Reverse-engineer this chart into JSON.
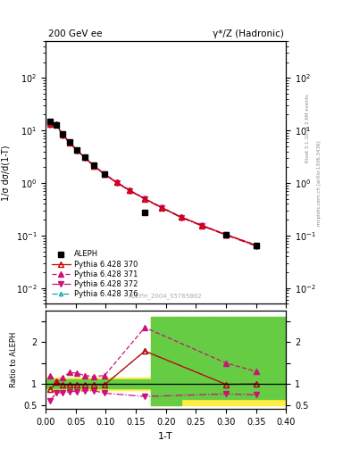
{
  "title_left": "200 GeV ee",
  "title_right": "γ*/Z (Hadronic)",
  "ylabel_main": "1/σ dσ/d(1-T)",
  "ylabel_ratio": "Ratio to ALEPH",
  "xlabel": "1-T",
  "right_label_top": "Rivet 3.1.10, ≥ 2.6M events",
  "right_label_bottom": "mcplots.cern.ch [arXiv:1306.3436]",
  "watermark": "ALEPH_2004_S5765862",
  "aleph_x": [
    0.008,
    0.018,
    0.028,
    0.04,
    0.052,
    0.065,
    0.08,
    0.098,
    0.118,
    0.14,
    0.165,
    0.193,
    0.225,
    0.26,
    0.3,
    0.35
  ],
  "aleph_y": [
    15.0,
    12.5,
    8.5,
    6.0,
    4.3,
    3.1,
    2.15,
    1.5,
    null,
    null,
    0.28,
    null,
    null,
    null,
    0.105,
    0.065
  ],
  "py370_x": [
    0.008,
    0.018,
    0.028,
    0.04,
    0.052,
    0.065,
    0.08,
    0.098,
    0.118,
    0.14,
    0.165,
    0.193,
    0.225,
    0.26,
    0.3,
    0.35
  ],
  "py370_y": [
    13.0,
    13.0,
    8.3,
    5.85,
    4.2,
    3.05,
    2.12,
    1.47,
    1.03,
    0.72,
    0.5,
    0.34,
    0.225,
    0.155,
    0.104,
    0.065
  ],
  "py371_x": [
    0.008,
    0.018,
    0.028,
    0.04,
    0.052,
    0.065,
    0.08,
    0.098,
    0.118,
    0.14,
    0.165,
    0.193,
    0.225,
    0.26,
    0.3,
    0.35
  ],
  "py371_y": [
    13.5,
    13.2,
    8.5,
    5.95,
    4.25,
    3.08,
    2.14,
    1.49,
    1.04,
    0.73,
    0.505,
    0.345,
    0.228,
    0.157,
    0.105,
    0.066
  ],
  "py372_x": [
    0.008,
    0.018,
    0.028,
    0.04,
    0.052,
    0.065,
    0.08,
    0.098,
    0.118,
    0.14,
    0.165,
    0.193,
    0.225,
    0.26,
    0.3,
    0.35
  ],
  "py372_y": [
    12.5,
    12.8,
    8.1,
    5.75,
    4.15,
    3.0,
    2.09,
    1.45,
    1.01,
    0.71,
    0.49,
    0.335,
    0.221,
    0.152,
    0.102,
    0.063
  ],
  "py376_x": [
    0.008,
    0.018,
    0.028,
    0.04,
    0.052,
    0.065,
    0.08,
    0.098,
    0.118,
    0.14,
    0.165,
    0.193,
    0.225,
    0.26,
    0.3,
    0.35
  ],
  "py376_y": [
    13.0,
    13.0,
    8.3,
    5.85,
    4.2,
    3.05,
    2.12,
    1.47,
    1.03,
    0.72,
    0.5,
    0.34,
    0.225,
    0.155,
    0.104,
    0.065
  ],
  "ratio_x": [
    0.008,
    0.018,
    0.028,
    0.04,
    0.052,
    0.065,
    0.08,
    0.098,
    0.118,
    0.14,
    0.165,
    0.193,
    0.225,
    0.26,
    0.3,
    0.35
  ],
  "ratio370_y": [
    0.87,
    1.04,
    0.98,
    0.975,
    0.977,
    0.984,
    0.986,
    0.98,
    null,
    null,
    1.786,
    null,
    null,
    null,
    0.99,
    1.0
  ],
  "ratio371_y": [
    1.2,
    1.06,
    1.16,
    1.27,
    1.26,
    1.2,
    1.18,
    1.2,
    null,
    null,
    2.35,
    null,
    null,
    null,
    1.5,
    1.3
  ],
  "ratio372_y": [
    0.6,
    0.8,
    0.78,
    0.82,
    0.82,
    0.84,
    0.84,
    0.78,
    null,
    null,
    0.7,
    null,
    null,
    null,
    0.76,
    0.74
  ],
  "ratio376_y": [
    0.87,
    1.04,
    0.98,
    0.975,
    0.977,
    0.984,
    0.986,
    0.98,
    null,
    null,
    1.786,
    null,
    null,
    null,
    0.99,
    1.0
  ],
  "band_edges": [
    0.0,
    0.15,
    0.175,
    0.225,
    0.275,
    0.4
  ],
  "green_low": [
    0.9,
    0.9,
    0.5,
    0.65,
    0.65,
    0.65
  ],
  "green_high": [
    1.1,
    1.1,
    2.6,
    2.6,
    2.6,
    2.6
  ],
  "yellow_low": [
    0.85,
    0.85,
    0.5,
    0.5,
    0.5,
    0.5
  ],
  "yellow_high": [
    1.15,
    1.15,
    2.6,
    2.6,
    2.6,
    2.6
  ],
  "color_370": "#cc0000",
  "color_371": "#cc1177",
  "color_372": "#cc1177",
  "color_376": "#00aaaa",
  "color_aleph": "#000000",
  "ylim_main": [
    0.005,
    500
  ],
  "ylim_ratio": [
    0.4,
    2.75
  ],
  "xlim": [
    0.0,
    0.4
  ]
}
